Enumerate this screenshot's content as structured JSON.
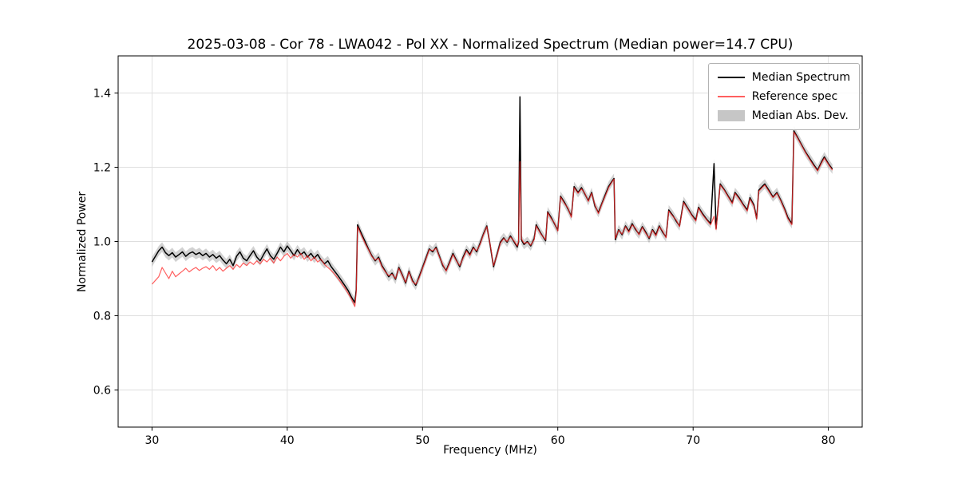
{
  "chart_data": {
    "type": "line",
    "title": "2025-03-08 - Cor 78 - LWA042 - Pol XX - Normalized Spectrum (Median power=14.7 CPU)",
    "xlabel": "Frequency (MHz)",
    "ylabel": "Normalized Power",
    "xlim": [
      27.5,
      82.5
    ],
    "ylim": [
      0.5,
      1.5
    ],
    "xticks": [
      30,
      40,
      50,
      60,
      70,
      80
    ],
    "yticks": [
      0.6,
      0.8,
      1.0,
      1.2,
      1.4
    ],
    "grid": true,
    "legend_position": "upper right",
    "band_label": "Median Abs. Dev.",
    "mad_halfwidth": 0.013,
    "colors": {
      "median": "#000000",
      "reference": "#ff2a2a",
      "reference_alpha": 0.75,
      "band": "#888888",
      "band_alpha": 0.38,
      "grid": "#dedede",
      "spine": "#000000"
    },
    "x": [
      30.0,
      30.25,
      30.5,
      30.75,
      31.0,
      31.25,
      31.5,
      31.75,
      32.0,
      32.25,
      32.5,
      32.75,
      33.0,
      33.25,
      33.5,
      33.75,
      34.0,
      34.25,
      34.5,
      34.75,
      35.0,
      35.25,
      35.5,
      35.75,
      36.0,
      36.25,
      36.5,
      36.75,
      37.0,
      37.25,
      37.5,
      37.75,
      38.0,
      38.25,
      38.5,
      38.75,
      39.0,
      39.25,
      39.5,
      39.75,
      40.0,
      40.25,
      40.5,
      40.75,
      41.0,
      41.25,
      41.5,
      41.75,
      42.0,
      42.25,
      42.5,
      42.75,
      43.0,
      43.25,
      43.5,
      43.75,
      44.0,
      44.25,
      44.5,
      44.75,
      45.0,
      45.1,
      45.2,
      45.5,
      45.75,
      46.0,
      46.25,
      46.5,
      46.75,
      47.0,
      47.25,
      47.5,
      47.75,
      48.0,
      48.25,
      48.5,
      48.75,
      49.0,
      49.25,
      49.5,
      49.75,
      50.0,
      50.25,
      50.5,
      50.75,
      51.0,
      51.25,
      51.5,
      51.75,
      52.0,
      52.25,
      52.5,
      52.75,
      53.0,
      53.25,
      53.5,
      53.75,
      54.0,
      54.25,
      54.5,
      54.75,
      55.0,
      55.25,
      55.5,
      55.75,
      56.0,
      56.25,
      56.5,
      56.75,
      57.0,
      57.1,
      57.2,
      57.3,
      57.5,
      57.75,
      58.0,
      58.25,
      58.4,
      58.75,
      59.1,
      59.25,
      59.5,
      59.75,
      60.0,
      60.2,
      60.5,
      60.75,
      61.0,
      61.2,
      61.5,
      61.75,
      62.0,
      62.25,
      62.5,
      62.75,
      63.0,
      63.25,
      63.5,
      63.75,
      64.0,
      64.15,
      64.25,
      64.5,
      64.75,
      65.0,
      65.25,
      65.5,
      65.75,
      66.0,
      66.25,
      66.5,
      66.75,
      67.0,
      67.25,
      67.5,
      67.75,
      68.0,
      68.2,
      68.5,
      68.75,
      69.0,
      69.3,
      69.6,
      69.9,
      70.2,
      70.4,
      70.7,
      71.0,
      71.3,
      71.55,
      71.7,
      72.0,
      72.3,
      72.6,
      72.9,
      73.1,
      73.4,
      73.7,
      74.0,
      74.2,
      74.5,
      74.7,
      74.85,
      75.1,
      75.3,
      75.6,
      75.9,
      76.2,
      76.5,
      76.8,
      77.0,
      77.3,
      77.45,
      77.7,
      78.0,
      78.3,
      78.6,
      78.9,
      79.2,
      79.5,
      79.7,
      80.0,
      80.3
    ],
    "series": [
      {
        "name": "Median Spectrum",
        "color": "#000000",
        "values": [
          0.945,
          0.96,
          0.975,
          0.985,
          0.97,
          0.962,
          0.97,
          0.958,
          0.965,
          0.972,
          0.96,
          0.968,
          0.972,
          0.965,
          0.97,
          0.962,
          0.968,
          0.958,
          0.965,
          0.955,
          0.962,
          0.95,
          0.94,
          0.952,
          0.935,
          0.96,
          0.972,
          0.955,
          0.948,
          0.962,
          0.975,
          0.958,
          0.948,
          0.965,
          0.98,
          0.962,
          0.952,
          0.968,
          0.985,
          0.972,
          0.988,
          0.975,
          0.962,
          0.978,
          0.965,
          0.972,
          0.958,
          0.968,
          0.955,
          0.965,
          0.95,
          0.94,
          0.948,
          0.932,
          0.92,
          0.908,
          0.895,
          0.882,
          0.868,
          0.85,
          0.835,
          0.87,
          1.045,
          1.02,
          1.0,
          0.98,
          0.962,
          0.948,
          0.958,
          0.935,
          0.92,
          0.905,
          0.915,
          0.898,
          0.93,
          0.91,
          0.888,
          0.92,
          0.895,
          0.882,
          0.905,
          0.93,
          0.955,
          0.98,
          0.972,
          0.985,
          0.96,
          0.935,
          0.922,
          0.945,
          0.968,
          0.95,
          0.932,
          0.958,
          0.978,
          0.965,
          0.985,
          0.972,
          0.995,
          1.02,
          1.042,
          0.99,
          0.932,
          0.965,
          0.998,
          1.01,
          0.998,
          1.015,
          1.0,
          0.985,
          0.998,
          1.39,
          1.005,
          0.992,
          1.0,
          0.988,
          1.008,
          1.045,
          1.022,
          1.002,
          1.08,
          1.065,
          1.048,
          1.03,
          1.122,
          1.105,
          1.088,
          1.068,
          1.148,
          1.132,
          1.145,
          1.128,
          1.11,
          1.132,
          1.095,
          1.078,
          1.102,
          1.125,
          1.148,
          1.162,
          1.17,
          1.005,
          1.032,
          1.018,
          1.042,
          1.028,
          1.048,
          1.032,
          1.02,
          1.04,
          1.025,
          1.008,
          1.032,
          1.018,
          1.042,
          1.025,
          1.012,
          1.085,
          1.07,
          1.055,
          1.042,
          1.108,
          1.09,
          1.072,
          1.058,
          1.092,
          1.075,
          1.06,
          1.048,
          1.21,
          1.035,
          1.155,
          1.14,
          1.122,
          1.105,
          1.132,
          1.118,
          1.1,
          1.085,
          1.118,
          1.098,
          1.062,
          1.138,
          1.148,
          1.155,
          1.138,
          1.12,
          1.132,
          1.11,
          1.085,
          1.065,
          1.048,
          1.298,
          1.282,
          1.262,
          1.242,
          1.225,
          1.208,
          1.192,
          1.215,
          1.228,
          1.21,
          1.195
        ]
      },
      {
        "name": "Reference spec",
        "color": "#ff2a2a",
        "values": [
          0.885,
          0.895,
          0.905,
          0.93,
          0.915,
          0.9,
          0.92,
          0.905,
          0.913,
          0.92,
          0.928,
          0.918,
          0.925,
          0.93,
          0.922,
          0.928,
          0.932,
          0.925,
          0.935,
          0.922,
          0.93,
          0.92,
          0.928,
          0.935,
          0.925,
          0.938,
          0.93,
          0.942,
          0.935,
          0.945,
          0.938,
          0.948,
          0.94,
          0.952,
          0.945,
          0.955,
          0.942,
          0.958,
          0.948,
          0.96,
          0.968,
          0.955,
          0.965,
          0.958,
          0.968,
          0.952,
          0.962,
          0.948,
          0.958,
          0.945,
          0.952,
          0.938,
          0.93,
          0.922,
          0.912,
          0.9,
          0.888,
          0.875,
          0.86,
          0.845,
          0.825,
          0.862,
          1.04,
          1.015,
          0.995,
          0.978,
          0.96,
          0.95,
          0.955,
          0.932,
          0.918,
          0.908,
          0.912,
          0.9,
          0.928,
          0.908,
          0.89,
          0.918,
          0.892,
          0.885,
          0.902,
          0.928,
          0.952,
          0.978,
          0.975,
          0.982,
          0.958,
          0.938,
          0.92,
          0.942,
          0.965,
          0.948,
          0.935,
          0.955,
          0.975,
          0.962,
          0.982,
          0.975,
          0.992,
          1.018,
          1.04,
          0.992,
          0.935,
          0.962,
          0.995,
          1.008,
          1.0,
          1.012,
          1.002,
          0.988,
          1.0,
          1.215,
          1.008,
          0.995,
          0.998,
          0.99,
          1.005,
          1.042,
          1.02,
          1.005,
          1.078,
          1.062,
          1.05,
          1.028,
          1.12,
          1.102,
          1.09,
          1.065,
          1.145,
          1.13,
          1.142,
          1.13,
          1.108,
          1.13,
          1.098,
          1.075,
          1.1,
          1.122,
          1.145,
          1.16,
          1.168,
          1.008,
          1.03,
          1.02,
          1.04,
          1.025,
          1.045,
          1.035,
          1.018,
          1.038,
          1.022,
          1.01,
          1.03,
          1.015,
          1.04,
          1.028,
          1.01,
          1.082,
          1.068,
          1.058,
          1.04,
          1.105,
          1.088,
          1.07,
          1.055,
          1.09,
          1.072,
          1.058,
          1.045,
          1.068,
          1.032,
          1.152,
          1.138,
          1.12,
          1.102,
          1.13,
          1.115,
          1.098,
          1.082,
          1.115,
          1.095,
          1.06,
          1.135,
          1.145,
          1.152,
          1.135,
          1.118,
          1.13,
          1.108,
          1.082,
          1.062,
          1.045,
          1.295,
          1.28,
          1.26,
          1.24,
          1.222,
          1.205,
          1.19,
          1.212,
          1.225,
          1.208,
          1.192
        ]
      }
    ]
  }
}
